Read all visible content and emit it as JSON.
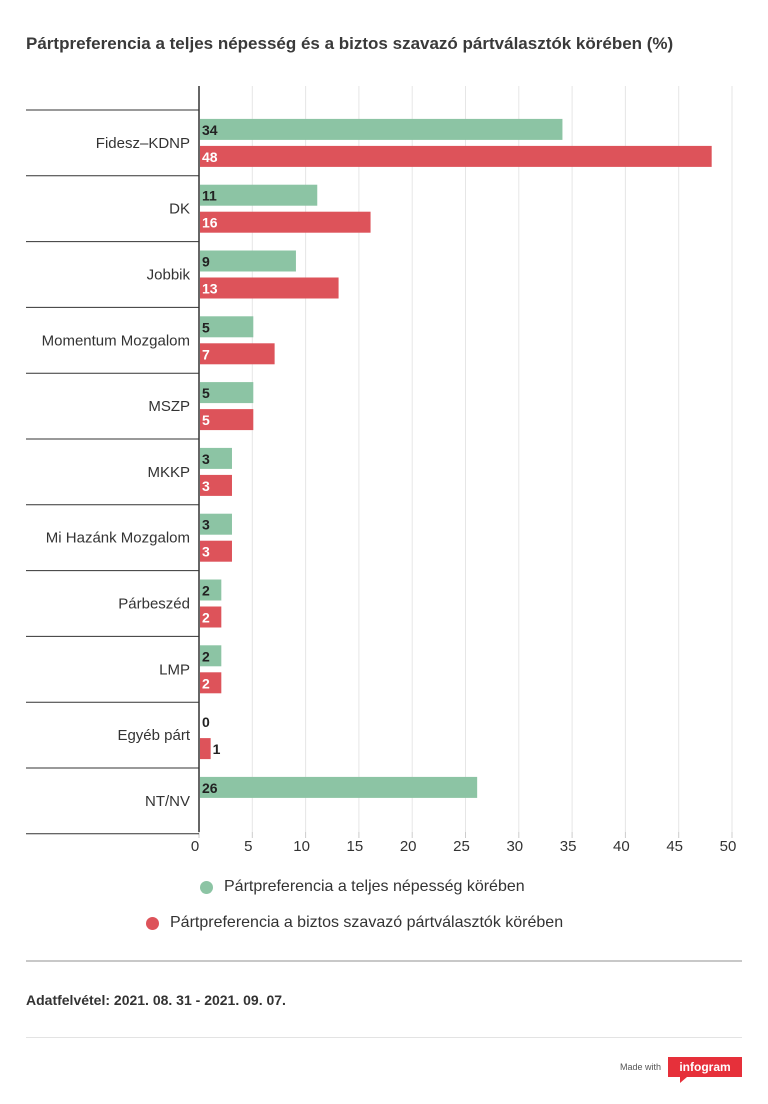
{
  "title": "Pártpreferencia a teljes népesség és a biztos szavazó pártválasztók körében (%)",
  "chart_data": {
    "type": "bar",
    "orientation": "horizontal",
    "categories": [
      "Fidesz–KDNP",
      "DK",
      "Jobbik",
      "Momentum Mozgalom",
      "MSZP",
      "MKKP",
      "Mi Hazánk Mozgalom",
      "Párbeszéd",
      "LMP",
      "Egyéb párt",
      "NT/NV"
    ],
    "series": [
      {
        "name": "Pártpreferencia a teljes népesség körében",
        "color": "#8cc4a4",
        "values": [
          34,
          11,
          9,
          5,
          5,
          3,
          3,
          2,
          2,
          0,
          26
        ]
      },
      {
        "name": "Pártpreferencia a biztos szavazó pártválasztók körében",
        "color": "#dd535a",
        "values": [
          48,
          16,
          13,
          7,
          5,
          3,
          3,
          2,
          2,
          1,
          null
        ]
      }
    ],
    "xlim": [
      0,
      50
    ],
    "xticks": [
      "0",
      "5",
      "10",
      "15",
      "20",
      "25",
      "30",
      "35",
      "40",
      "45",
      "50"
    ],
    "grid": true,
    "legend_position": "bottom"
  },
  "legend": {
    "item1": "Pártpreferencia a teljes népesség körében",
    "item2": "Pártpreferencia a biztos szavazó pártválasztók körében"
  },
  "footnote": "Adatfelvétel: 2021. 08. 31 - 2021. 09. 07.",
  "footer": {
    "made_with": "Made with",
    "brand": "infogram"
  }
}
